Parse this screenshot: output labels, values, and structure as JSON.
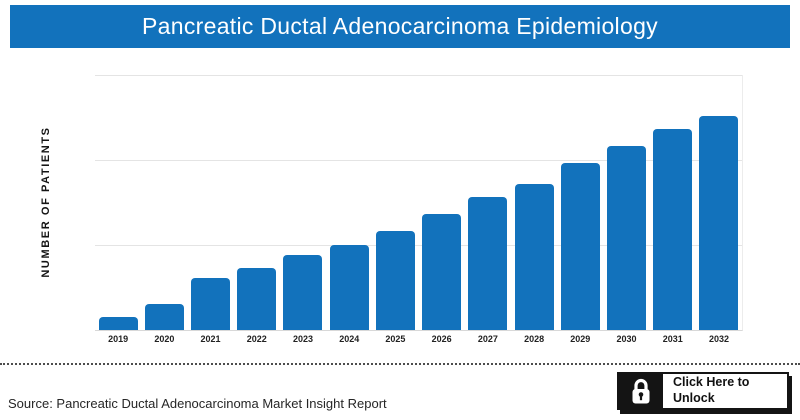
{
  "header": {
    "title": "Pancreatic Ductal Adenocarcinoma Epidemiology",
    "bg_color": "#1272BC",
    "text_color": "#FFFFFF"
  },
  "chart_data": {
    "type": "bar",
    "title": "Pancreatic Ductal Adenocarcinoma Epidemiology",
    "xlabel": "",
    "ylabel": "NUMBER OF PATIENTS",
    "categories": [
      "2019",
      "2020",
      "2021",
      "2022",
      "2023",
      "2024",
      "2025",
      "2026",
      "2027",
      "2028",
      "2029",
      "2030",
      "2031",
      "2032"
    ],
    "values": [
      0.15,
      0.31,
      0.61,
      0.73,
      0.88,
      1.0,
      1.16,
      1.37,
      1.56,
      1.72,
      1.96,
      2.16,
      2.37,
      2.52
    ],
    "value_note": "Y-axis tick values are hidden in the source chart; values are estimated in gridline units (1 unit = one gridline interval)",
    "ylim": [
      0,
      3
    ],
    "gridlines": [
      1,
      2,
      3
    ],
    "grid_on": true,
    "legend": false,
    "bar_color": "#1272BC"
  },
  "footer": {
    "source_text": "Source: Pancreatic Ductal Adenocarcinoma Market Insight Report",
    "unlock_button": {
      "label_line1": "Click Here to",
      "label_line2": "Unlock",
      "icon": "lock-icon",
      "border_color": "#141414"
    }
  }
}
